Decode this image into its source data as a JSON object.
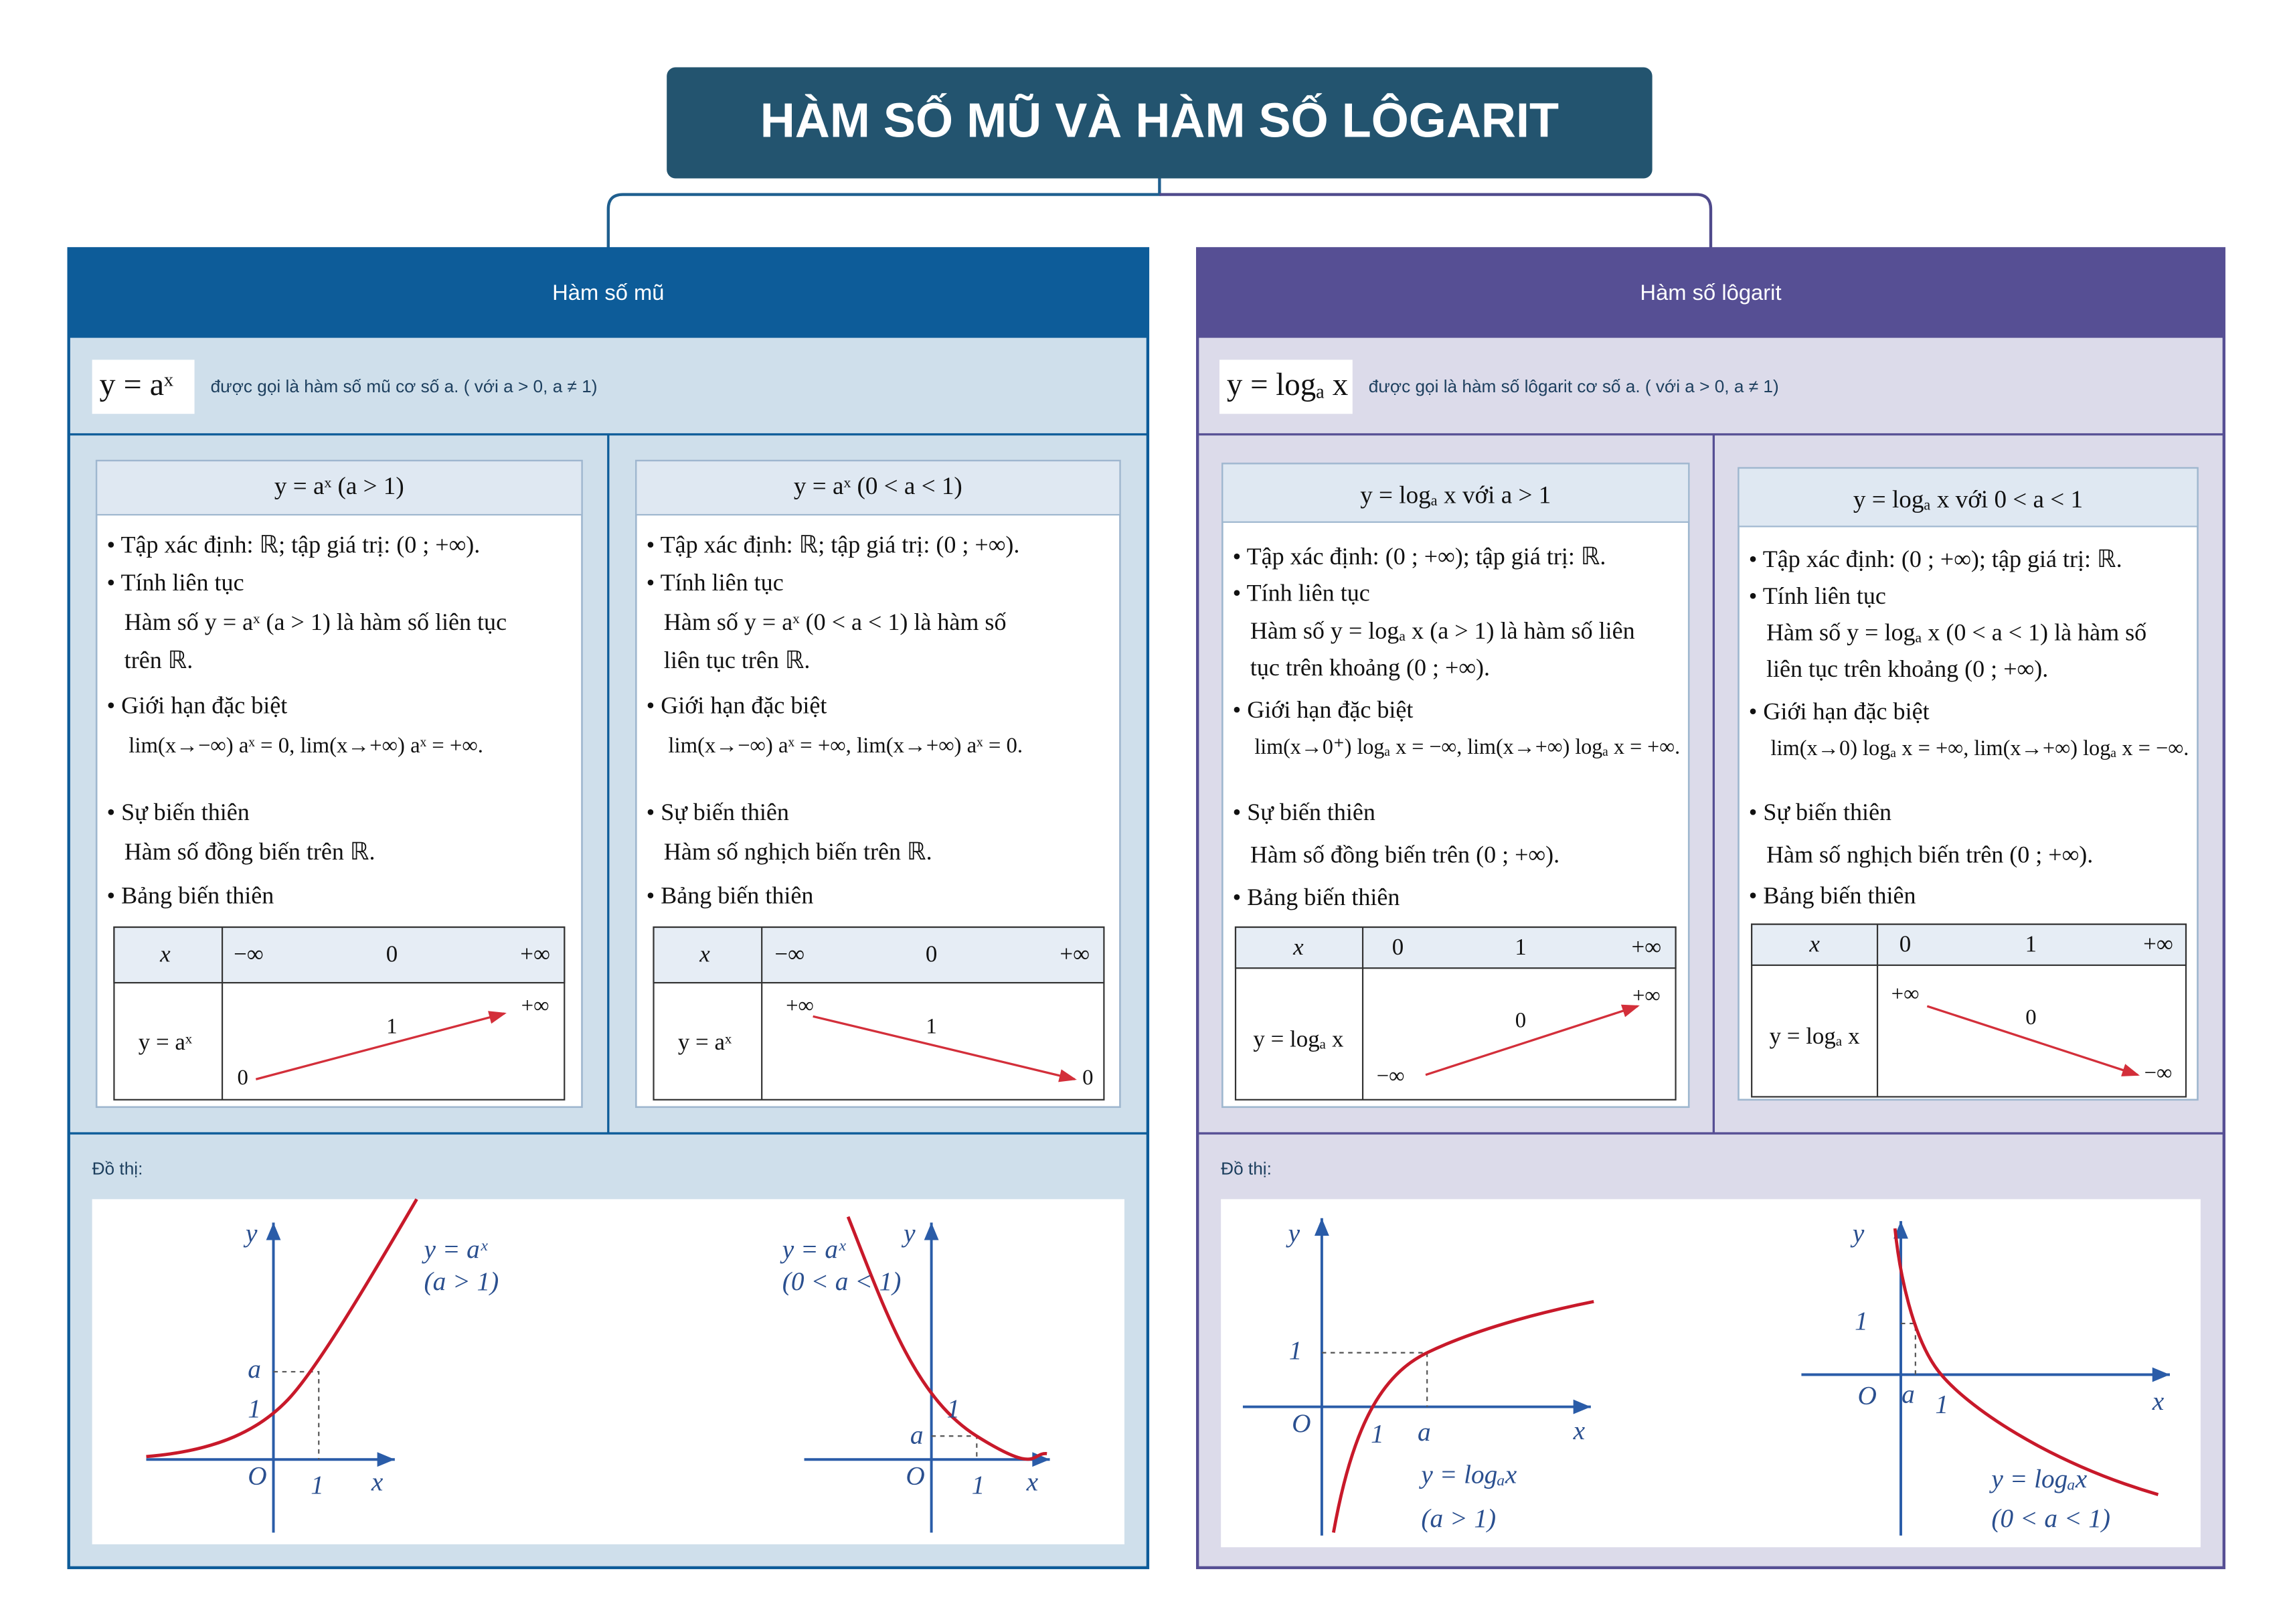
{
  "title": "HÀM SỐ MŨ VÀ HÀM SỐ LÔGARIT",
  "branches": [
    {
      "heading": "Hàm số mũ",
      "formula": "y = aˣ",
      "definition": "được gọi là hàm số mũ cơ số a. ( với a > 0, a ≠ 1)",
      "cases": [
        {
          "title": "y = aˣ (a > 1)",
          "lines": [
            "• Tập xác định: ℝ; tập giá trị: (0 ; +∞).",
            "• Tính liên tục",
            "Hàm số y = aˣ (a > 1) là hàm số liên tục",
            "trên ℝ.",
            "• Giới hạn đặc biệt",
            "lim(x→−∞) aˣ = 0,  lim(x→+∞) aˣ = +∞.",
            "• Sự biến thiên",
            "Hàm số đồng biến trên ℝ.",
            "• Bảng biến thiên"
          ],
          "table": {
            "header": [
              "x",
              "−∞",
              "0",
              "+∞"
            ],
            "row_label": "y = aˣ",
            "row_values": [
              "0",
              "1",
              "+∞"
            ]
          }
        },
        {
          "title": "y = aˣ (0 < a < 1)",
          "lines": [
            "• Tập xác định: ℝ; tập giá trị: (0 ; +∞).",
            "• Tính liên tục",
            "Hàm số y = aˣ (0 < a < 1) là hàm số",
            "liên tục trên ℝ.",
            "• Giới hạn đặc biệt",
            "lim(x→−∞) aˣ = +∞,  lim(x→+∞) aˣ = 0.",
            "• Sự biến thiên",
            "Hàm số nghịch biến trên ℝ.",
            "• Bảng biến thiên"
          ],
          "table": {
            "header": [
              "x",
              "−∞",
              "0",
              "+∞"
            ],
            "row_label": "y = aˣ",
            "row_values": [
              "+∞",
              "1",
              "0"
            ]
          }
        }
      ],
      "graph_label": "Đồ thị:",
      "graphs": [
        {
          "labels": [
            "y",
            "x",
            "O",
            "1",
            "a",
            "1",
            "y = aˣ",
            "(a > 1)"
          ]
        },
        {
          "labels": [
            "y",
            "x",
            "O",
            "1",
            "a",
            "1",
            "y = aˣ",
            "(0 < a < 1)"
          ]
        }
      ]
    },
    {
      "heading": "Hàm số lôgarit",
      "formula": "y = logₐ x",
      "definition": "được gọi là hàm số lôgarit cơ số a. ( với a > 0, a ≠ 1)",
      "cases": [
        {
          "title": "y = logₐ x  với a > 1",
          "lines": [
            "• Tập xác định: (0 ; +∞); tập giá trị: ℝ.",
            "• Tính liên tục",
            "Hàm số y = logₐ x (a > 1) là hàm số liên",
            "tục trên khoảng (0 ; +∞).",
            "• Giới hạn đặc biệt",
            "lim(x→0⁺) logₐ x = −∞,  lim(x→+∞) logₐ x = +∞.",
            "• Sự biến thiên",
            "Hàm số đồng biến trên (0 ; +∞).",
            "• Bảng biến thiên"
          ],
          "table": {
            "header": [
              "x",
              "0",
              "1",
              "+∞"
            ],
            "row_label": "y = logₐ x",
            "row_values": [
              "−∞",
              "0",
              "+∞"
            ]
          }
        },
        {
          "title": "y = logₐ x  với 0 < a < 1",
          "lines": [
            "• Tập xác định: (0 ; +∞); tập giá trị: ℝ.",
            "• Tính liên tục",
            "Hàm số y = logₐ x (0 < a < 1) là hàm số",
            "liên tục trên khoảng (0 ; +∞).",
            "• Giới hạn đặc biệt",
            "lim(x→0) logₐ x = +∞,  lim(x→+∞) logₐ x = −∞.",
            "• Sự biến thiên",
            "Hàm số nghịch biến trên (0 ; +∞).",
            "• Bảng biến thiên"
          ],
          "table": {
            "header": [
              "x",
              "0",
              "1",
              "+∞"
            ],
            "row_label": "y = logₐ x",
            "row_values": [
              "+∞",
              "0",
              "−∞"
            ]
          }
        }
      ],
      "graph_label": "Đồ thị:",
      "graphs": [
        {
          "labels": [
            "y",
            "x",
            "O",
            "1",
            "1",
            "a",
            "y = logₐx",
            "(a > 1)"
          ]
        },
        {
          "labels": [
            "y",
            "x",
            "O",
            "1",
            "a",
            "1",
            "y = logₐx",
            "(0 < a < 1)"
          ]
        }
      ]
    }
  ]
}
